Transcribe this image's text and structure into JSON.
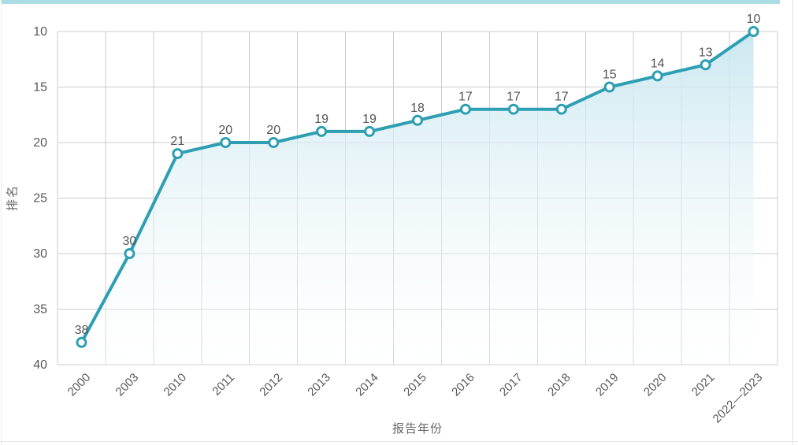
{
  "page": {
    "top_bar_color": "#a9dde3"
  },
  "chart_data": {
    "type": "line",
    "title": "",
    "xlabel": "报告年份",
    "ylabel": "排名",
    "categories": [
      "2000",
      "2003",
      "2010",
      "2011",
      "2012",
      "2013",
      "2014",
      "2015",
      "2016",
      "2017",
      "2018",
      "2019",
      "2020",
      "2021",
      "2022—2023"
    ],
    "series": [
      {
        "name": "排名",
        "values": [
          38,
          30,
          21,
          20,
          20,
          19,
          19,
          18,
          17,
          17,
          17,
          15,
          14,
          13,
          10
        ]
      }
    ],
    "data_labels": [
      "38",
      "30",
      "21",
      "20",
      "20",
      "19",
      "19",
      "18",
      "17",
      "17",
      "17",
      "15",
      "14",
      "13",
      "10"
    ],
    "y_axis": {
      "min": 10,
      "max": 40,
      "ticks": [
        10,
        15,
        20,
        25,
        30,
        35,
        40
      ],
      "inverted": true
    },
    "x_axis": {
      "label_rotation": 45
    },
    "grid": true,
    "legend": "none",
    "area_fill": true,
    "colors": {
      "line": "#2e9fb3",
      "marker_fill": "#ffffff",
      "area_top": "#c6e5ef",
      "area_bottom": "#ffffff",
      "grid": "#cccccc",
      "tick_text": "#595959",
      "value_label_text": "#555555",
      "axis_title_text": "#666666"
    }
  }
}
